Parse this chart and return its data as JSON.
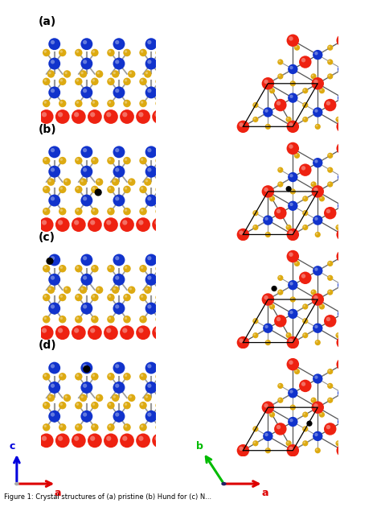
{
  "figsize": [
    4.74,
    6.56
  ],
  "dpi": 100,
  "bg_color": "#ffffff",
  "panel_labels": [
    "(a)",
    "(b)",
    "(c)",
    "(d)"
  ],
  "panel_label_fontsize": 10,
  "panel_label_fontweight": "bold",
  "colors": {
    "red": "#ee2211",
    "blue": "#1133cc",
    "gold": "#ddaa11",
    "black": "#000000",
    "axis_blue": "#0000dd",
    "axis_red": "#dd0000",
    "axis_green": "#00bb00",
    "bond": "#888888",
    "bg": "#ffffff"
  },
  "adatom_positions_side": [
    null,
    [
      5.0,
      4.2
    ],
    [
      0.8,
      7.6
    ],
    [
      4.0,
      7.6
    ]
  ],
  "adatom_positions_top": [
    null,
    [
      5.2,
      5.0
    ],
    [
      3.8,
      5.8
    ],
    [
      7.2,
      3.2
    ]
  ]
}
